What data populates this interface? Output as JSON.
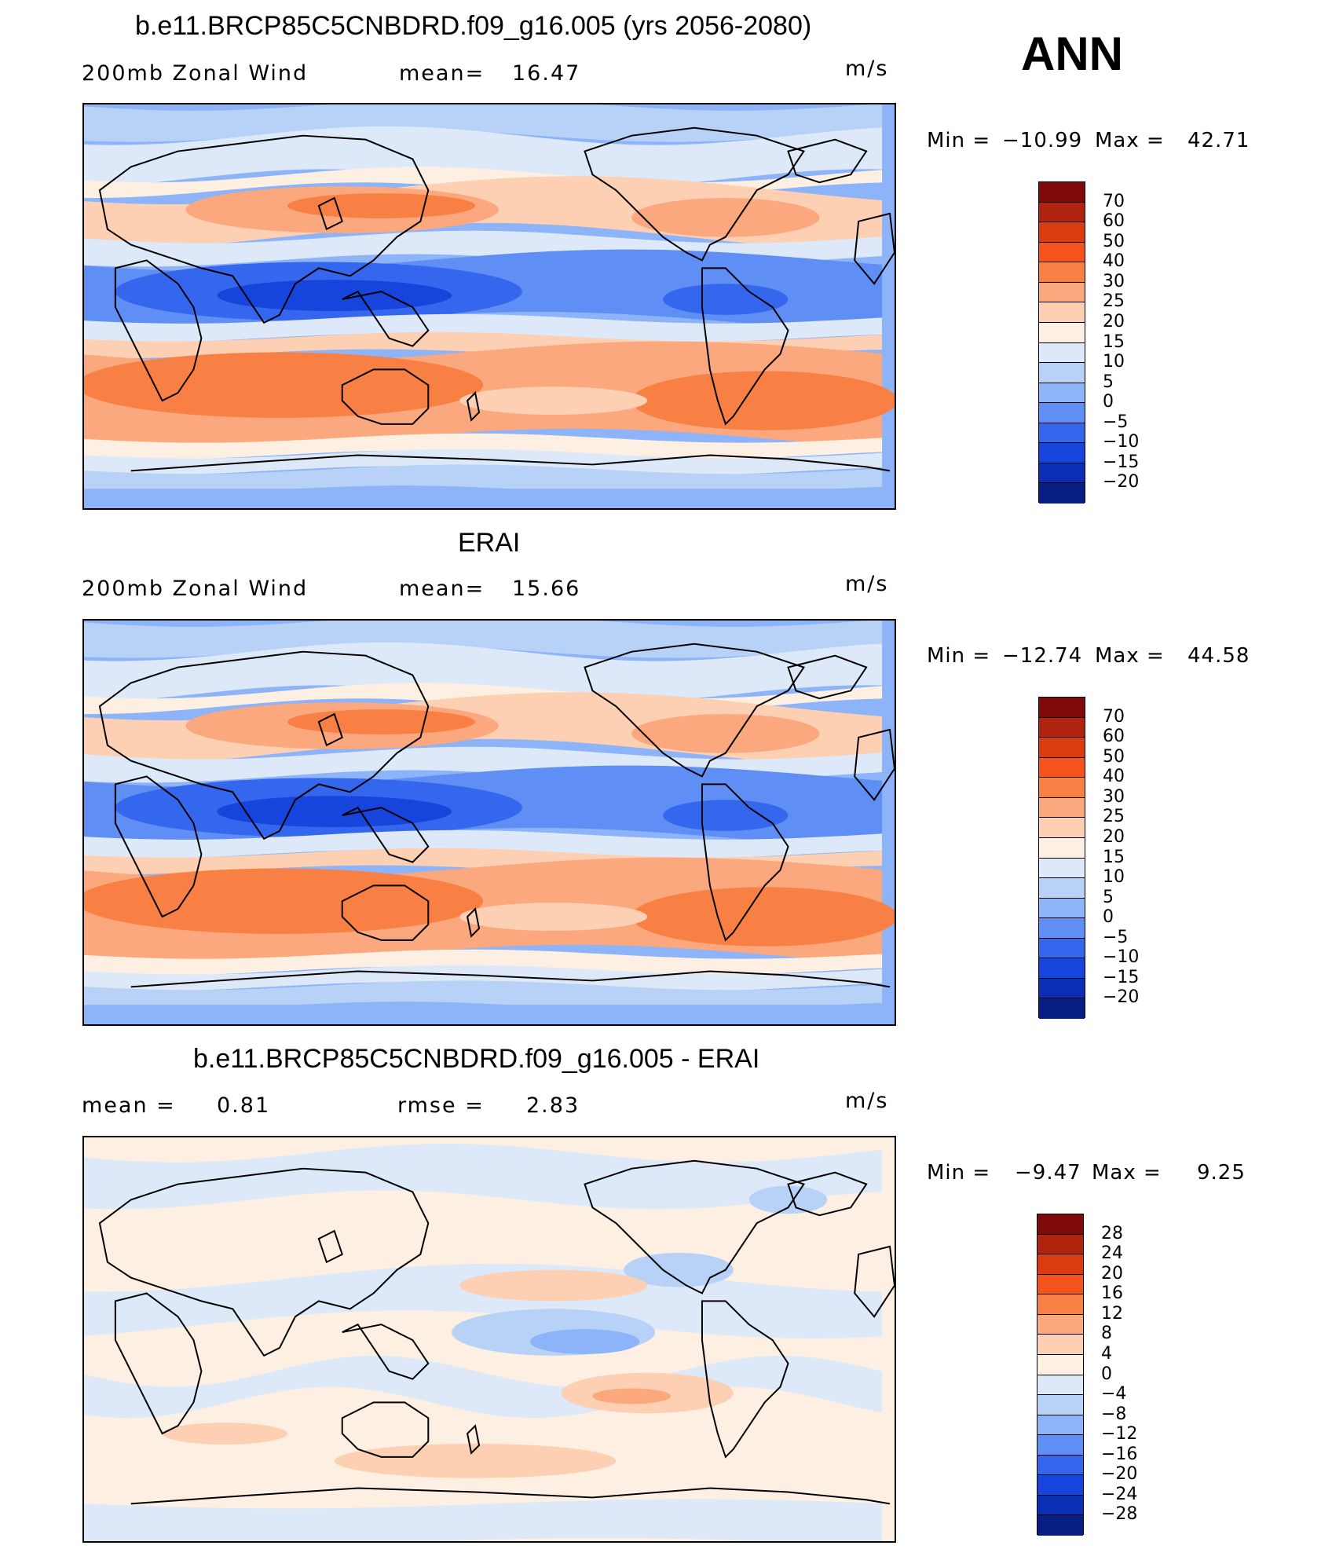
{
  "season": "ANN",
  "units": "m/s",
  "panels": [
    {
      "title": "b.e11.BRCP85C5CNBDRD.f09_g16.005 (yrs 2056-2080)",
      "left_label": "200mb Zonal Wind",
      "center_label_key": "mean=",
      "center_label_val": "16.47",
      "units": "m/s",
      "min_label": "Min =",
      "min_value": "−10.99",
      "max_label": "Max =",
      "max_value": "42.71",
      "levels": [
        "70",
        "60",
        "50",
        "40",
        "30",
        "25",
        "20",
        "15",
        "10",
        "5",
        "0",
        "−5",
        "−10",
        "−15",
        "−20"
      ]
    },
    {
      "title": "ERAI",
      "left_label": "200mb Zonal Wind",
      "center_label_key": "mean=",
      "center_label_val": "15.66",
      "units": "m/s",
      "min_label": "Min =",
      "min_value": "−12.74",
      "max_label": "Max =",
      "max_value": "44.58",
      "levels": [
        "70",
        "60",
        "50",
        "40",
        "30",
        "25",
        "20",
        "15",
        "10",
        "5",
        "0",
        "−5",
        "−10",
        "−15",
        "−20"
      ]
    },
    {
      "title": "b.e11.BRCP85C5CNBDRD.f09_g16.005 - ERAI",
      "left_label_key": "mean =",
      "left_label_val": "0.81",
      "center_label_key": "rmse =",
      "center_label_val": "2.83",
      "units": "m/s",
      "min_label": "Min =",
      "min_value": "−9.47",
      "max_label": "Max =",
      "max_value": "9.25",
      "levels": [
        "28",
        "24",
        "20",
        "16",
        "12",
        "8",
        "4",
        "0",
        "−4",
        "−8",
        "−12",
        "−16",
        "−20",
        "−24",
        "−28"
      ]
    }
  ],
  "colors": {
    "palette": [
      "#7f0a0a",
      "#b0230e",
      "#dc3b10",
      "#f4541c",
      "#f98044",
      "#fba87e",
      "#fdcfb3",
      "#fdf0e3",
      "#dde9f8",
      "#b8d1f7",
      "#8db3f8",
      "#5f8ef5",
      "#3567ee",
      "#1644dd",
      "#0a2fb4",
      "#071e84"
    ]
  }
}
